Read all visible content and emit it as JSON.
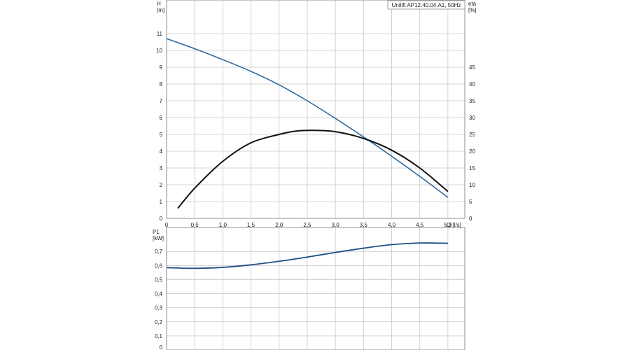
{
  "title": "Unilift AP12.40.04.A1, 50Hz",
  "colors": {
    "head": "#2f6aa0",
    "efficiency": "#111111",
    "power": "#1f4f86",
    "grid": "#c8c8c8",
    "frame": "#8c8c8c"
  },
  "chart_data": [
    {
      "type": "line",
      "title": "Unilift AP12.40.04.A1, 50Hz",
      "xlabel": "Q [l/s]",
      "ylabel": "H [m]",
      "y2label": "eta [%]",
      "xlim": [
        0,
        5.3
      ],
      "ylim": [
        0,
        13
      ],
      "y2lim": [
        0,
        65
      ],
      "grid": true,
      "x_ticks": [
        "0",
        "0,5",
        "1,0",
        "1,5",
        "2,0",
        "2,5",
        "3,0",
        "3,5",
        "4,0",
        "4,5",
        "5,0"
      ],
      "y_ticks": [
        "0",
        "1",
        "2",
        "3",
        "4",
        "5",
        "6",
        "7",
        "8",
        "9",
        "10",
        "11"
      ],
      "y2_ticks": [
        "0",
        "5",
        "10",
        "15",
        "20",
        "25",
        "30",
        "35",
        "40",
        "45"
      ],
      "series": [
        {
          "axis": "left",
          "x": [
            0,
            0.5,
            1.0,
            1.5,
            2.0,
            2.5,
            3.0,
            3.5,
            4.0,
            4.5,
            5.0
          ],
          "values": [
            10.7,
            10.1,
            9.45,
            8.75,
            7.95,
            7.0,
            5.95,
            4.85,
            3.7,
            2.5,
            1.25
          ]
        },
        {
          "axis": "right",
          "x": [
            0.2,
            0.5,
            1.0,
            1.5,
            2.0,
            2.3,
            2.6,
            3.0,
            3.5,
            4.0,
            4.5,
            5.0
          ],
          "values": [
            3,
            9,
            17,
            22.5,
            25,
            26,
            26.2,
            25.8,
            23.8,
            20.3,
            15,
            8
          ]
        }
      ]
    },
    {
      "type": "line",
      "xlabel": "",
      "ylabel": "P1 [kW]",
      "xlim": [
        0,
        5.3
      ],
      "ylim": [
        0,
        0.87
      ],
      "grid": true,
      "y_ticks": [
        "0",
        "0,1",
        "0,2",
        "0,3",
        "0,4",
        "0,5",
        "0,6",
        "0,7"
      ],
      "series": [
        {
          "axis": "left",
          "x": [
            0,
            0.5,
            1.0,
            1.5,
            2.0,
            2.5,
            3.0,
            3.5,
            4.0,
            4.5,
            5.0
          ],
          "values": [
            0.585,
            0.58,
            0.587,
            0.605,
            0.63,
            0.66,
            0.693,
            0.723,
            0.748,
            0.76,
            0.758
          ]
        }
      ]
    }
  ]
}
